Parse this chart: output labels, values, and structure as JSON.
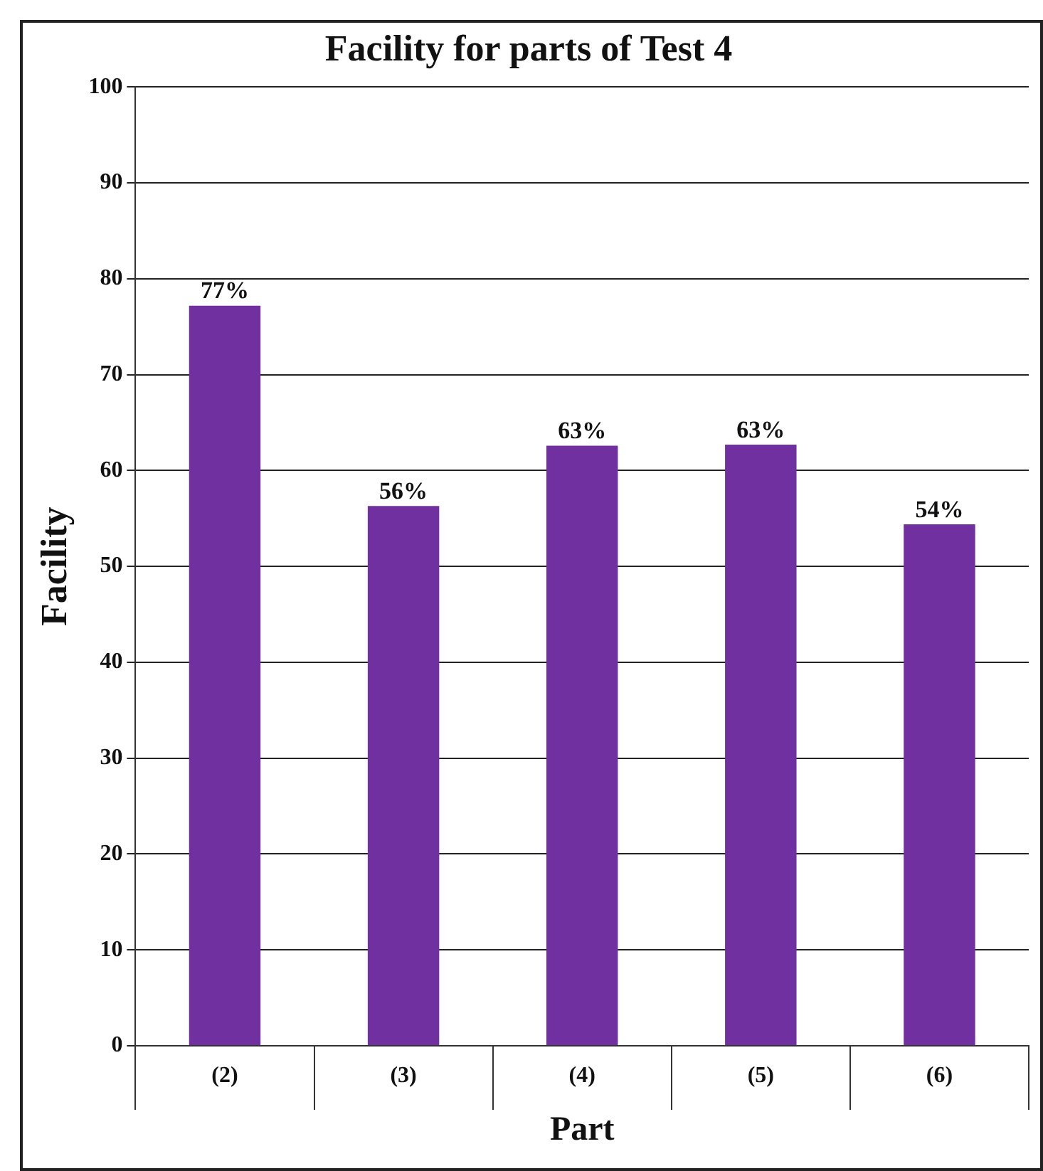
{
  "chart_data": {
    "type": "bar",
    "title": "Facility for parts of Test 4",
    "xlabel": "Part",
    "ylabel": "Facility",
    "categories": [
      "(2)",
      "(3)",
      "(4)",
      "(5)",
      "(6)"
    ],
    "values": [
      77.2,
      56.3,
      62.6,
      62.7,
      54.4
    ],
    "value_labels": [
      "77%",
      "56%",
      "63%",
      "63%",
      "54%"
    ],
    "color": "#7030a0",
    "ylim": [
      0,
      100
    ],
    "yticks": [
      0,
      10,
      20,
      30,
      40,
      50,
      60,
      70,
      80,
      90,
      100
    ],
    "grid": "y",
    "legend": false
  }
}
